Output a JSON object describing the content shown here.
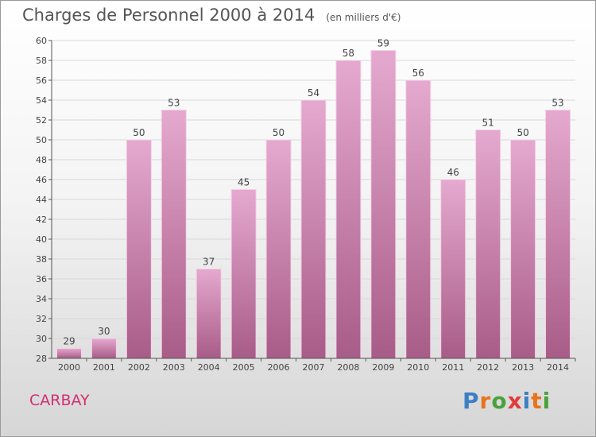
{
  "header": {
    "title": "Charges de Personnel 2000 à 2014",
    "subtitle": "(en milliers d'€)"
  },
  "footer": {
    "municipality": "CARBAY",
    "logo_text": "Proxiti",
    "logo_colors": [
      "#3d7fc4",
      "#e9721b",
      "#4aa23a",
      "#e23b3b",
      "#3d7fc4",
      "#e9721b",
      "#4aa23a"
    ]
  },
  "colors": {
    "bar_top": "#e5a9cf",
    "bar_bottom": "#a85c88",
    "grid": "#d8d8d8",
    "axis": "#555555",
    "municipality": "#d2306f"
  },
  "chart_data": {
    "type": "bar",
    "title": "Charges de Personnel 2000 à 2014",
    "subtitle": "(en milliers d'€)",
    "xlabel": "",
    "ylabel": "",
    "categories": [
      "2000",
      "2001",
      "2002",
      "2003",
      "2004",
      "2005",
      "2006",
      "2007",
      "2008",
      "2009",
      "2010",
      "2011",
      "2012",
      "2013",
      "2014"
    ],
    "values": [
      29,
      30,
      50,
      53,
      37,
      45,
      50,
      54,
      58,
      59,
      56,
      46,
      51,
      50,
      53
    ],
    "ylim": [
      28,
      60
    ],
    "yticks": [
      28,
      30,
      32,
      34,
      36,
      38,
      40,
      42,
      44,
      46,
      48,
      50,
      52,
      54,
      56,
      58,
      60
    ],
    "grid": true,
    "legend": "none",
    "data_labels": true
  }
}
